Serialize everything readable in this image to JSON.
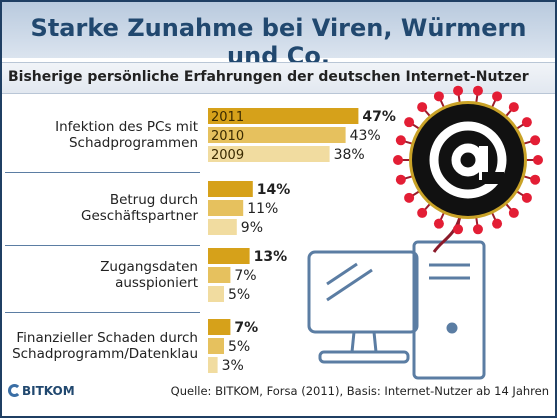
{
  "title": "Starke Zunahme bei Viren, Würmern und Co.",
  "subtitle": "Bisherige persönliche Erfahrungen der deutschen Internet-Nutzer",
  "source": "Quelle: BITKOM, Forsa (2011), Basis: Internet-Nutzer ab 14 Jahren",
  "logo_text": "BITKOM",
  "icon": "at-sign-virus-icon",
  "colors": {
    "y2011": "#d6a11a",
    "y2010": "#e6c15e",
    "y2009": "#f1dca0",
    "title": "#21486f"
  },
  "chart_data": {
    "type": "bar",
    "orientation": "horizontal",
    "title": "Starke Zunahme bei Viren, Würmern und Co.",
    "subtitle": "Bisherige persönliche Erfahrungen der deutschen Internet-Nutzer",
    "unit": "%",
    "series_names": [
      "2011",
      "2010",
      "2009"
    ],
    "categories": [
      {
        "label_lines": [
          "Infektion des PCs mit",
          "Schadprogrammen"
        ],
        "values": [
          47,
          43,
          38
        ],
        "labels": [
          "47%",
          "43%",
          "38%"
        ]
      },
      {
        "label_lines": [
          "Betrug durch",
          "Geschäftspartner"
        ],
        "values": [
          14,
          11,
          9
        ],
        "labels": [
          "14%",
          "11%",
          "9%"
        ]
      },
      {
        "label_lines": [
          "Zugangsdaten",
          "ausspioniert"
        ],
        "values": [
          13,
          7,
          5
        ],
        "labels": [
          "13%",
          "7%",
          "5%"
        ]
      },
      {
        "label_lines": [
          "Finanzieller Schaden durch",
          "Schadprogramm/Datenklau"
        ],
        "values": [
          7,
          5,
          3
        ],
        "labels": [
          "7%",
          "5%",
          "3%"
        ]
      }
    ]
  }
}
